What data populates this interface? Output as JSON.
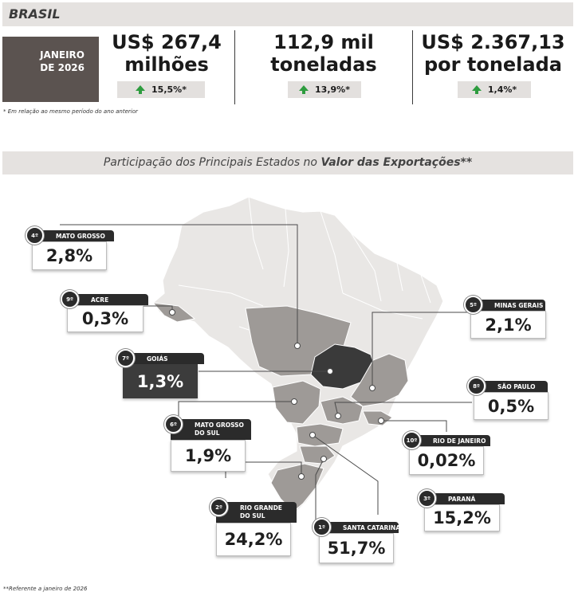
{
  "header": {
    "title": "BRASIL"
  },
  "period": {
    "line1": "JANEIRO",
    "line2": "DE 2026"
  },
  "kpis": [
    {
      "line1": "US$ 267,4",
      "line2": "milhões",
      "change": "15,5%*"
    },
    {
      "line1": "112,9 mil",
      "line2": "toneladas",
      "change": "13,9%*"
    },
    {
      "line1": "US$ 2.367,13",
      "line2": "por tonelada",
      "change": "1,4%*"
    }
  ],
  "note_top": "* Em relação ao mesmo período do ano anterior",
  "subtitle": {
    "prefix": "Participação dos Principais Estados no ",
    "bold": "Valor das Exportações**"
  },
  "states": [
    {
      "rank": "4º",
      "name": "MATO GROSSO",
      "value": "2,8%"
    },
    {
      "rank": "9º",
      "name": "ACRE",
      "value": "0,3%"
    },
    {
      "rank": "7º",
      "name": "GOIÁS",
      "value": "1,3%"
    },
    {
      "rank": "6º",
      "name": "MATO GROSSO DO SUL",
      "value": "1,9%"
    },
    {
      "rank": "2º",
      "name": "RIO GRANDE DO SUL",
      "value": "24,2%"
    },
    {
      "rank": "1º",
      "name": "SANTA CATARINA",
      "value": "51,7%"
    },
    {
      "rank": "3º",
      "name": "PARANÁ",
      "value": "15,2%"
    },
    {
      "rank": "10º",
      "name": "RIO DE JANEIRO",
      "value": "0,02%"
    },
    {
      "rank": "8º",
      "name": "SÃO PAULO",
      "value": "0,5%"
    },
    {
      "rank": "5º",
      "name": "MINAS GERAIS",
      "value": "2,1%"
    }
  ],
  "note_bottom": "**Referente a janeiro de 2026",
  "colors": {
    "dark": "#5b5350",
    "up_arrow": "#2e9c3f",
    "state_highlight": "#9e9a97",
    "state_dark": "#3a3a3a",
    "map_base": "#e9e7e5"
  }
}
